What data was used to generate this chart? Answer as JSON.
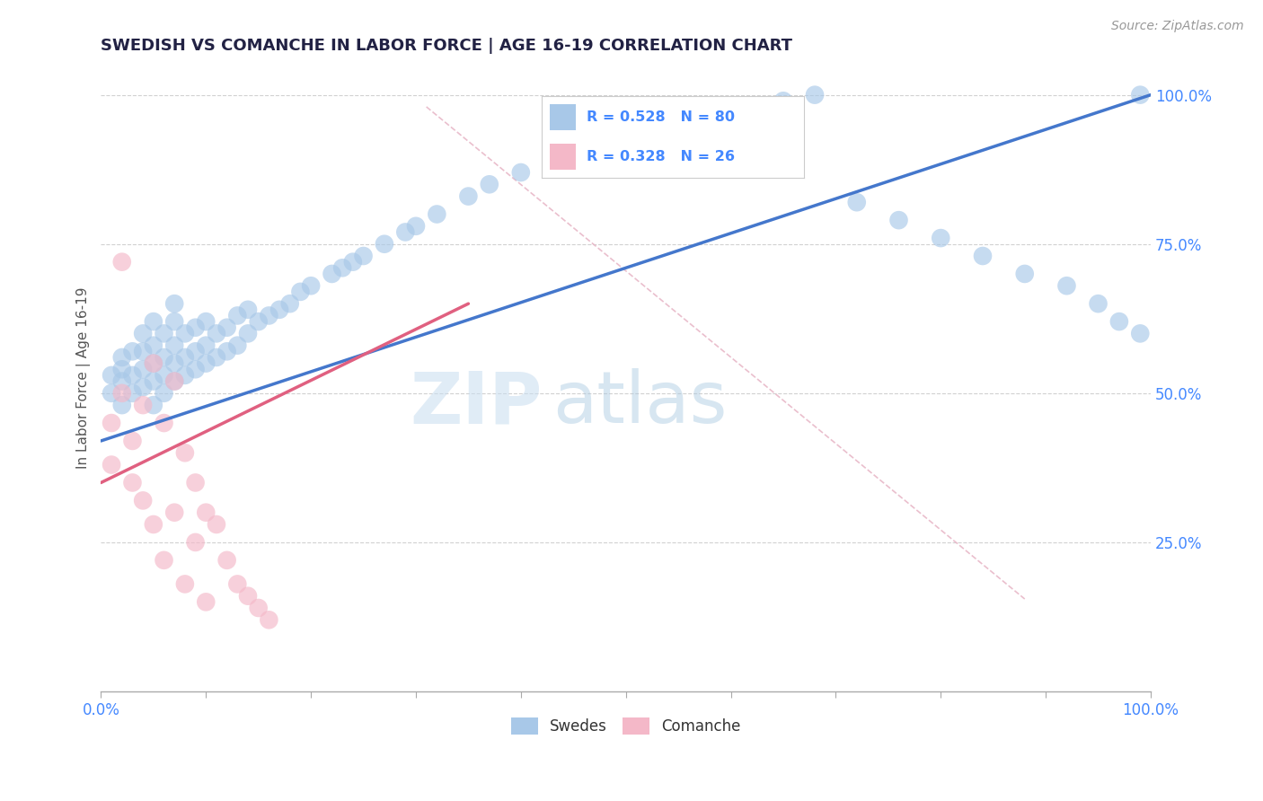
{
  "title": "SWEDISH VS COMANCHE IN LABOR FORCE | AGE 16-19 CORRELATION CHART",
  "source_text": "Source: ZipAtlas.com",
  "ylabel": "In Labor Force | Age 16-19",
  "watermark_zip": "ZIP",
  "watermark_atlas": "atlas",
  "xlim": [
    0.0,
    1.0
  ],
  "ylim": [
    0.0,
    1.05
  ],
  "y_tick_positions_right": [
    0.25,
    0.5,
    0.75,
    1.0
  ],
  "y_tick_labels_right": [
    "25.0%",
    "50.0%",
    "75.0%",
    "100.0%"
  ],
  "swedish_color": "#a8c8e8",
  "comanche_color": "#f4b8c8",
  "swedish_line_color": "#4477cc",
  "comanche_line_color": "#e06080",
  "ref_line_color": "#e8b8c8",
  "grid_color": "#cccccc",
  "title_color": "#222244",
  "tick_color": "#4488ff",
  "legend_label1": "Swedes",
  "legend_label2": "Comanche",
  "swedish_r": 0.528,
  "swedish_n": 80,
  "comanche_r": 0.328,
  "comanche_n": 26,
  "sw_x": [
    0.01,
    0.01,
    0.02,
    0.02,
    0.02,
    0.02,
    0.03,
    0.03,
    0.03,
    0.04,
    0.04,
    0.04,
    0.04,
    0.05,
    0.05,
    0.05,
    0.05,
    0.05,
    0.06,
    0.06,
    0.06,
    0.06,
    0.07,
    0.07,
    0.07,
    0.07,
    0.07,
    0.08,
    0.08,
    0.08,
    0.09,
    0.09,
    0.09,
    0.1,
    0.1,
    0.1,
    0.11,
    0.11,
    0.12,
    0.12,
    0.13,
    0.13,
    0.14,
    0.14,
    0.15,
    0.16,
    0.17,
    0.18,
    0.19,
    0.2,
    0.22,
    0.23,
    0.24,
    0.25,
    0.27,
    0.29,
    0.3,
    0.32,
    0.35,
    0.37,
    0.4,
    0.43,
    0.46,
    0.49,
    0.52,
    0.55,
    0.58,
    0.61,
    0.65,
    0.68,
    0.72,
    0.76,
    0.8,
    0.84,
    0.88,
    0.92,
    0.95,
    0.97,
    0.99,
    0.99
  ],
  "sw_y": [
    0.5,
    0.53,
    0.48,
    0.52,
    0.54,
    0.56,
    0.5,
    0.53,
    0.57,
    0.51,
    0.54,
    0.57,
    0.6,
    0.48,
    0.52,
    0.55,
    0.58,
    0.62,
    0.5,
    0.53,
    0.56,
    0.6,
    0.52,
    0.55,
    0.58,
    0.62,
    0.65,
    0.53,
    0.56,
    0.6,
    0.54,
    0.57,
    0.61,
    0.55,
    0.58,
    0.62,
    0.56,
    0.6,
    0.57,
    0.61,
    0.58,
    0.63,
    0.6,
    0.64,
    0.62,
    0.63,
    0.64,
    0.65,
    0.67,
    0.68,
    0.7,
    0.71,
    0.72,
    0.73,
    0.75,
    0.77,
    0.78,
    0.8,
    0.83,
    0.85,
    0.87,
    0.89,
    0.91,
    0.93,
    0.95,
    0.96,
    0.97,
    0.98,
    0.99,
    1.0,
    0.82,
    0.79,
    0.76,
    0.73,
    0.7,
    0.68,
    0.65,
    0.62,
    0.6,
    1.0
  ],
  "co_x": [
    0.01,
    0.01,
    0.02,
    0.02,
    0.03,
    0.03,
    0.04,
    0.04,
    0.05,
    0.05,
    0.06,
    0.06,
    0.07,
    0.07,
    0.08,
    0.08,
    0.09,
    0.09,
    0.1,
    0.1,
    0.11,
    0.12,
    0.13,
    0.14,
    0.15,
    0.16
  ],
  "co_y": [
    0.45,
    0.38,
    0.5,
    0.72,
    0.42,
    0.35,
    0.48,
    0.32,
    0.55,
    0.28,
    0.45,
    0.22,
    0.52,
    0.3,
    0.4,
    0.18,
    0.35,
    0.25,
    0.3,
    0.15,
    0.28,
    0.22,
    0.18,
    0.16,
    0.14,
    0.12
  ],
  "sw_line_x0": 0.0,
  "sw_line_y0": 0.42,
  "sw_line_x1": 1.0,
  "sw_line_y1": 1.0,
  "co_line_x0": 0.0,
  "co_line_y0": 0.35,
  "co_line_x1": 0.35,
  "co_line_y1": 0.65,
  "ref_line_x0": 0.31,
  "ref_line_y0": 0.98,
  "ref_line_x1": 0.88,
  "ref_line_y1": 0.155
}
